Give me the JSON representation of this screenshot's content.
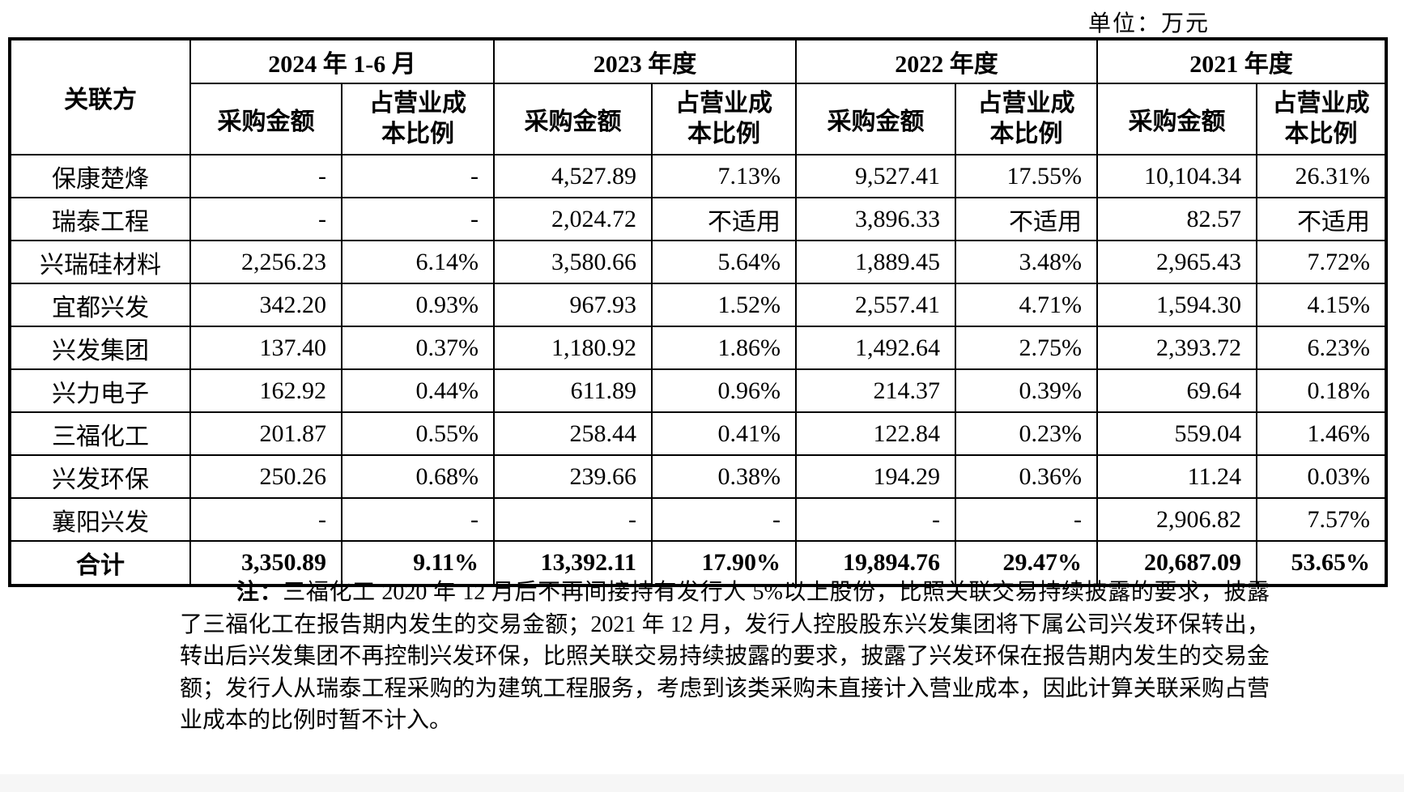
{
  "page": {
    "unit_label": "单位：万元"
  },
  "table": {
    "corner_header": "关联方",
    "periods": [
      "2024 年 1-6 月",
      "2023 年度",
      "2022 年度",
      "2021 年度"
    ],
    "sub_header_amount": "采购金额",
    "sub_header_ratio": "占营业成\n本比例",
    "rows": [
      {
        "name": "保康楚烽",
        "cells": [
          "-",
          "-",
          "4,527.89",
          "7.13%",
          "9,527.41",
          "17.55%",
          "10,104.34",
          "26.31%"
        ]
      },
      {
        "name": "瑞泰工程",
        "cells": [
          "-",
          "-",
          "2,024.72",
          "不适用",
          "3,896.33",
          "不适用",
          "82.57",
          "不适用"
        ]
      },
      {
        "name": "兴瑞硅材料",
        "cells": [
          "2,256.23",
          "6.14%",
          "3,580.66",
          "5.64%",
          "1,889.45",
          "3.48%",
          "2,965.43",
          "7.72%"
        ]
      },
      {
        "name": "宜都兴发",
        "cells": [
          "342.20",
          "0.93%",
          "967.93",
          "1.52%",
          "2,557.41",
          "4.71%",
          "1,594.30",
          "4.15%"
        ]
      },
      {
        "name": "兴发集团",
        "cells": [
          "137.40",
          "0.37%",
          "1,180.92",
          "1.86%",
          "1,492.64",
          "2.75%",
          "2,393.72",
          "6.23%"
        ]
      },
      {
        "name": "兴力电子",
        "cells": [
          "162.92",
          "0.44%",
          "611.89",
          "0.96%",
          "214.37",
          "0.39%",
          "69.64",
          "0.18%"
        ]
      },
      {
        "name": "三福化工",
        "cells": [
          "201.87",
          "0.55%",
          "258.44",
          "0.41%",
          "122.84",
          "0.23%",
          "559.04",
          "1.46%"
        ]
      },
      {
        "name": "兴发环保",
        "cells": [
          "250.26",
          "0.68%",
          "239.66",
          "0.38%",
          "194.29",
          "0.36%",
          "11.24",
          "0.03%"
        ]
      },
      {
        "name": "襄阳兴发",
        "cells": [
          "-",
          "-",
          "-",
          "-",
          "-",
          "-",
          "2,906.82",
          "7.57%"
        ]
      }
    ],
    "total_row": {
      "name": "合计",
      "cells": [
        "3,350.89",
        "9.11%",
        "13,392.11",
        "17.90%",
        "19,894.76",
        "29.47%",
        "20,687.09",
        "53.65%"
      ]
    }
  },
  "note": {
    "label": "注：",
    "text": "三福化工 2020 年 12 月后不再间接持有发行人 5%以上股份，比照关联交易持续披露的要求，披露了三福化工在报告期内发生的交易金额；2021 年 12 月，发行人控股股东兴发集团将下属公司兴发环保转出，转出后兴发集团不再控制兴发环保，比照关联交易持续披露的要求，披露了兴发环保在报告期内发生的交易金额；发行人从瑞泰工程采购的为建筑工程服务，考虑到该类采购未直接计入营业成本，因此计算关联采购占营业成本的比例时暂不计入。"
  }
}
